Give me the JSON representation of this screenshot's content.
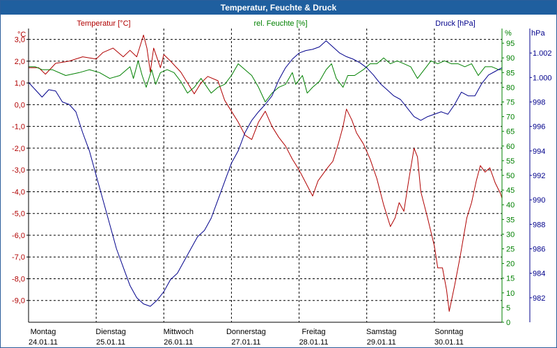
{
  "window": {
    "title": "Temperatur, Feuchte & Druck"
  },
  "colors": {
    "temperature": "#b00000",
    "humidity": "#008000",
    "pressure": "#00008b",
    "grid": "#000000",
    "titlebar": "#1f5f9f"
  },
  "chart_data": {
    "type": "line",
    "title": "Temperatur, Feuchte & Druck",
    "grid": true,
    "x": {
      "labels": [
        {
          "day": "Montag",
          "date": "24.01.11"
        },
        {
          "day": "Dienstag",
          "date": "25.01.11"
        },
        {
          "day": "Mittwoch",
          "date": "26.01.11"
        },
        {
          "day": "Donnerstag",
          "date": "27.01.11"
        },
        {
          "day": "Freitag",
          "date": "28.01.11"
        },
        {
          "day": "Samstag",
          "date": "29.01.11"
        },
        {
          "day": "Sonntag",
          "date": "30.01.11"
        }
      ],
      "range": [
        0,
        7
      ]
    },
    "axes": {
      "temperature": {
        "label": "Temperatur [°C]",
        "unit": "°C",
        "range": [
          -10,
          3.5
        ],
        "ticks": [
          "3,0",
          "2,0",
          "1,0",
          "0,0",
          "-1,0",
          "-2,0",
          "-3,0",
          "-4,0",
          "-5,0",
          "-6,0",
          "-7,0",
          "-8,0",
          "-9,0"
        ],
        "tick_values": [
          3,
          2,
          1,
          0,
          -1,
          -2,
          -3,
          -4,
          -5,
          -6,
          -7,
          -8,
          -9
        ]
      },
      "humidity": {
        "label": "rel. Feuchte [%]",
        "unit": "%",
        "range": [
          0,
          100
        ],
        "ticks": [
          "95",
          "90",
          "85",
          "80",
          "75",
          "70",
          "65",
          "60",
          "55",
          "50",
          "45",
          "40",
          "35",
          "30",
          "25",
          "20",
          "15",
          "10",
          "5",
          "0"
        ],
        "tick_values": [
          95,
          90,
          85,
          80,
          75,
          70,
          65,
          60,
          55,
          50,
          45,
          40,
          35,
          30,
          25,
          20,
          15,
          10,
          5,
          0
        ]
      },
      "pressure": {
        "label": "Druck [hPa]",
        "unit": "hPa",
        "range": [
          980,
          1004
        ],
        "ticks": [
          "1.002",
          "1.000",
          "998",
          "996",
          "994",
          "992",
          "990",
          "988",
          "986",
          "984",
          "982"
        ],
        "tick_values": [
          1002,
          1000,
          998,
          996,
          994,
          992,
          990,
          988,
          986,
          984,
          982
        ]
      }
    },
    "series": [
      {
        "name": "Temperatur [°C]",
        "axis": "temperature",
        "color": "#b00000",
        "points": [
          [
            0.0,
            1.7
          ],
          [
            0.15,
            1.7
          ],
          [
            0.25,
            1.4
          ],
          [
            0.4,
            1.9
          ],
          [
            0.6,
            2.0
          ],
          [
            0.8,
            2.2
          ],
          [
            1.0,
            2.1
          ],
          [
            1.1,
            2.4
          ],
          [
            1.25,
            2.6
          ],
          [
            1.4,
            2.2
          ],
          [
            1.5,
            2.5
          ],
          [
            1.6,
            2.2
          ],
          [
            1.7,
            3.2
          ],
          [
            1.75,
            2.6
          ],
          [
            1.8,
            1.5
          ],
          [
            1.85,
            2.6
          ],
          [
            1.95,
            1.7
          ],
          [
            2.0,
            2.3
          ],
          [
            2.1,
            2.0
          ],
          [
            2.25,
            1.5
          ],
          [
            2.35,
            1.0
          ],
          [
            2.45,
            0.5
          ],
          [
            2.55,
            1.0
          ],
          [
            2.65,
            1.3
          ],
          [
            2.8,
            1.1
          ],
          [
            2.9,
            0.2
          ],
          [
            3.0,
            -0.3
          ],
          [
            3.1,
            -0.8
          ],
          [
            3.2,
            -1.4
          ],
          [
            3.3,
            -1.6
          ],
          [
            3.4,
            -0.8
          ],
          [
            3.5,
            -0.3
          ],
          [
            3.6,
            -1.0
          ],
          [
            3.7,
            -1.5
          ],
          [
            3.8,
            -1.9
          ],
          [
            3.9,
            -2.5
          ],
          [
            4.0,
            -3.0
          ],
          [
            4.1,
            -3.6
          ],
          [
            4.2,
            -4.2
          ],
          [
            4.28,
            -3.5
          ],
          [
            4.35,
            -3.2
          ],
          [
            4.42,
            -2.9
          ],
          [
            4.5,
            -2.6
          ],
          [
            4.58,
            -1.8
          ],
          [
            4.65,
            -1.0
          ],
          [
            4.7,
            -0.2
          ],
          [
            4.78,
            -0.7
          ],
          [
            4.85,
            -1.3
          ],
          [
            4.95,
            -1.8
          ],
          [
            5.05,
            -2.5
          ],
          [
            5.15,
            -3.4
          ],
          [
            5.25,
            -4.6
          ],
          [
            5.35,
            -5.6
          ],
          [
            5.42,
            -5.2
          ],
          [
            5.48,
            -4.5
          ],
          [
            5.55,
            -4.9
          ],
          [
            5.62,
            -3.5
          ],
          [
            5.7,
            -2.0
          ],
          [
            5.75,
            -2.4
          ],
          [
            5.8,
            -4.0
          ],
          [
            5.9,
            -5.2
          ],
          [
            6.0,
            -6.5
          ],
          [
            6.05,
            -7.5
          ],
          [
            6.12,
            -7.5
          ],
          [
            6.18,
            -8.5
          ],
          [
            6.22,
            -9.5
          ],
          [
            6.3,
            -8.3
          ],
          [
            6.38,
            -7.0
          ],
          [
            6.48,
            -5.2
          ],
          [
            6.55,
            -4.5
          ],
          [
            6.62,
            -3.5
          ],
          [
            6.68,
            -2.8
          ],
          [
            6.75,
            -3.1
          ],
          [
            6.82,
            -2.9
          ],
          [
            6.9,
            -3.6
          ],
          [
            6.98,
            -4.1
          ],
          [
            7.0,
            -4.3
          ]
        ]
      },
      {
        "name": "rel. Feuchte [%]",
        "axis": "humidity",
        "color": "#008000",
        "points": [
          [
            0.0,
            87
          ],
          [
            0.1,
            87
          ],
          [
            0.2,
            86
          ],
          [
            0.35,
            86
          ],
          [
            0.55,
            84
          ],
          [
            0.75,
            85
          ],
          [
            0.9,
            86
          ],
          [
            1.05,
            85
          ],
          [
            1.2,
            83
          ],
          [
            1.35,
            84
          ],
          [
            1.5,
            87
          ],
          [
            1.55,
            83
          ],
          [
            1.62,
            89
          ],
          [
            1.68,
            84
          ],
          [
            1.74,
            80
          ],
          [
            1.82,
            86
          ],
          [
            1.88,
            81
          ],
          [
            1.95,
            85
          ],
          [
            2.05,
            86
          ],
          [
            2.15,
            85
          ],
          [
            2.25,
            82
          ],
          [
            2.35,
            78
          ],
          [
            2.45,
            80
          ],
          [
            2.55,
            83
          ],
          [
            2.7,
            78
          ],
          [
            2.8,
            80
          ],
          [
            2.9,
            81
          ],
          [
            3.0,
            84
          ],
          [
            3.1,
            88
          ],
          [
            3.2,
            86
          ],
          [
            3.3,
            84
          ],
          [
            3.4,
            80
          ],
          [
            3.5,
            75
          ],
          [
            3.6,
            78
          ],
          [
            3.7,
            80
          ],
          [
            3.8,
            81
          ],
          [
            3.9,
            85
          ],
          [
            3.95,
            81
          ],
          [
            4.05,
            84
          ],
          [
            4.12,
            78
          ],
          [
            4.2,
            80
          ],
          [
            4.3,
            82
          ],
          [
            4.4,
            86
          ],
          [
            4.48,
            88
          ],
          [
            4.55,
            83
          ],
          [
            4.65,
            80
          ],
          [
            4.72,
            84
          ],
          [
            4.82,
            84
          ],
          [
            4.95,
            86
          ],
          [
            5.05,
            88
          ],
          [
            5.15,
            88
          ],
          [
            5.25,
            90
          ],
          [
            5.35,
            88
          ],
          [
            5.45,
            89
          ],
          [
            5.55,
            88
          ],
          [
            5.65,
            87
          ],
          [
            5.75,
            83
          ],
          [
            5.85,
            86
          ],
          [
            5.95,
            89
          ],
          [
            6.05,
            88
          ],
          [
            6.15,
            89
          ],
          [
            6.25,
            88
          ],
          [
            6.35,
            88
          ],
          [
            6.45,
            87
          ],
          [
            6.55,
            88
          ],
          [
            6.65,
            84
          ],
          [
            6.75,
            87
          ],
          [
            6.85,
            87
          ],
          [
            6.95,
            86
          ],
          [
            7.0,
            86
          ]
        ]
      },
      {
        "name": "Druck [hPa]",
        "axis": "pressure",
        "color": "#00008b",
        "points": [
          [
            0.0,
            999.6
          ],
          [
            0.1,
            999.0
          ],
          [
            0.2,
            998.4
          ],
          [
            0.3,
            999.0
          ],
          [
            0.4,
            998.9
          ],
          [
            0.5,
            998.0
          ],
          [
            0.6,
            997.8
          ],
          [
            0.7,
            997.2
          ],
          [
            0.8,
            995.5
          ],
          [
            0.9,
            994.0
          ],
          [
            1.0,
            992.0
          ],
          [
            1.1,
            990.0
          ],
          [
            1.2,
            988.0
          ],
          [
            1.3,
            986.0
          ],
          [
            1.4,
            984.5
          ],
          [
            1.5,
            983.0
          ],
          [
            1.6,
            982.0
          ],
          [
            1.7,
            981.5
          ],
          [
            1.8,
            981.3
          ],
          [
            1.9,
            981.8
          ],
          [
            2.0,
            982.5
          ],
          [
            2.1,
            983.5
          ],
          [
            2.2,
            984.0
          ],
          [
            2.3,
            985.0
          ],
          [
            2.4,
            986.0
          ],
          [
            2.5,
            987.0
          ],
          [
            2.6,
            987.5
          ],
          [
            2.7,
            988.5
          ],
          [
            2.8,
            990.0
          ],
          [
            2.9,
            991.5
          ],
          [
            3.0,
            993.0
          ],
          [
            3.1,
            994.0
          ],
          [
            3.2,
            995.5
          ],
          [
            3.3,
            996.5
          ],
          [
            3.4,
            997.2
          ],
          [
            3.5,
            997.8
          ],
          [
            3.6,
            998.5
          ],
          [
            3.7,
            999.8
          ],
          [
            3.8,
            1000.8
          ],
          [
            3.9,
            1001.5
          ],
          [
            4.0,
            1002.0
          ],
          [
            4.1,
            1002.2
          ],
          [
            4.2,
            1002.3
          ],
          [
            4.3,
            1002.5
          ],
          [
            4.4,
            1003.0
          ],
          [
            4.5,
            1002.5
          ],
          [
            4.6,
            1002.0
          ],
          [
            4.7,
            1001.7
          ],
          [
            4.8,
            1001.5
          ],
          [
            4.9,
            1001.2
          ],
          [
            5.0,
            1000.8
          ],
          [
            5.1,
            1000.2
          ],
          [
            5.2,
            999.5
          ],
          [
            5.3,
            999.0
          ],
          [
            5.4,
            998.5
          ],
          [
            5.5,
            998.2
          ],
          [
            5.6,
            997.5
          ],
          [
            5.7,
            996.8
          ],
          [
            5.8,
            996.5
          ],
          [
            5.9,
            996.8
          ],
          [
            6.0,
            997.0
          ],
          [
            6.1,
            997.2
          ],
          [
            6.2,
            997.0
          ],
          [
            6.3,
            997.8
          ],
          [
            6.4,
            998.8
          ],
          [
            6.5,
            998.5
          ],
          [
            6.6,
            998.5
          ],
          [
            6.7,
            999.5
          ],
          [
            6.8,
            1000.2
          ],
          [
            6.9,
            1000.5
          ],
          [
            7.0,
            1000.8
          ]
        ]
      }
    ]
  }
}
